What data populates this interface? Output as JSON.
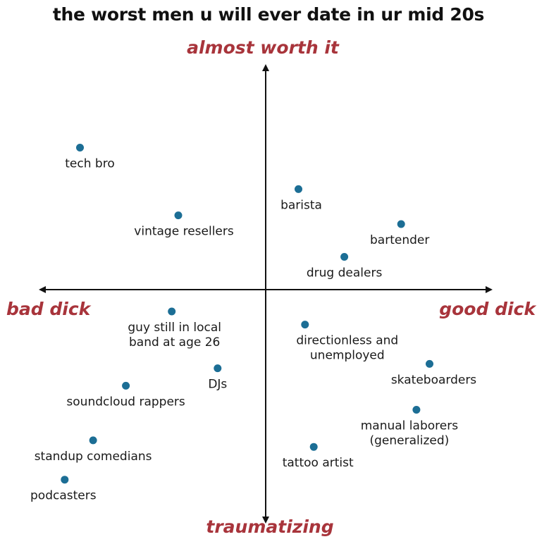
{
  "chart_data": {
    "type": "scatter",
    "title": "the worst men u will ever date in ur mid 20s",
    "axis_labels": {
      "top": "almost worth it",
      "bottom": "traumatizing",
      "left": "bad dick",
      "right": "good dick"
    },
    "xlim": [
      -1,
      1
    ],
    "ylim": [
      -1,
      1
    ],
    "grid": false,
    "point_color": "#1c6e95",
    "label_color": "#a8343b",
    "points": [
      {
        "label": "tech bro",
        "x": -0.85,
        "y": 0.65
      },
      {
        "label": "barista",
        "x": 0.15,
        "y": 0.46
      },
      {
        "label": "vintage resellers",
        "x": -0.4,
        "y": 0.34
      },
      {
        "label": "bartender",
        "x": 0.62,
        "y": 0.3
      },
      {
        "label": "drug dealers",
        "x": 0.36,
        "y": 0.15
      },
      {
        "label": "guy still in local band at age 26",
        "x": -0.43,
        "y": -0.1
      },
      {
        "label": "directionless and unemployed",
        "x": 0.18,
        "y": -0.16
      },
      {
        "label": "skateboarders",
        "x": 0.75,
        "y": -0.34
      },
      {
        "label": "DJs",
        "x": -0.22,
        "y": -0.36
      },
      {
        "label": "soundcloud rappers",
        "x": -0.64,
        "y": -0.44
      },
      {
        "label": "manual laborers (generalized)",
        "x": 0.69,
        "y": -0.55
      },
      {
        "label": "standup comedians",
        "x": -0.79,
        "y": -0.69
      },
      {
        "label": "tattoo artist",
        "x": 0.22,
        "y": -0.72
      },
      {
        "label": "podcasters",
        "x": -0.92,
        "y": -0.87
      }
    ]
  }
}
